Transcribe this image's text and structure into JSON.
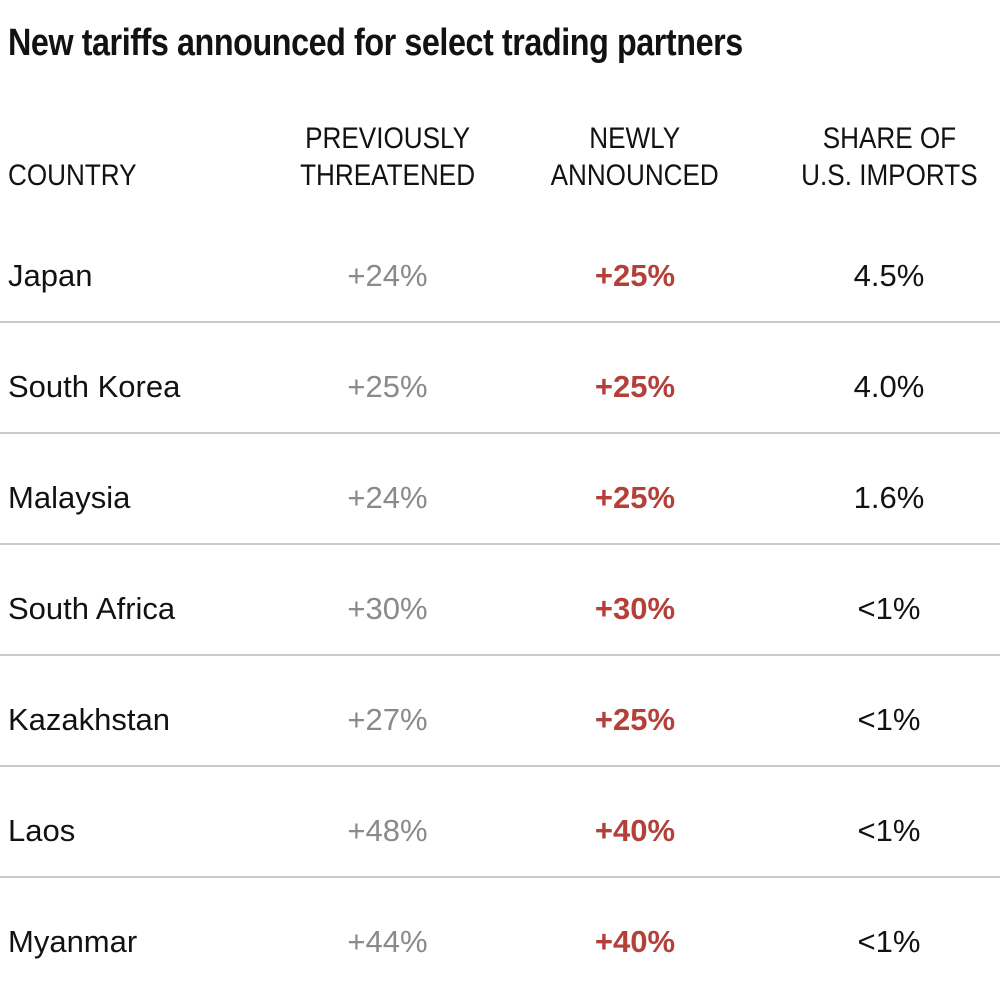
{
  "chart_data": {
    "type": "table",
    "title": "New tariffs announced for select trading partners",
    "column_headers": [
      {
        "id": "country",
        "lines": [
          "COUNTRY",
          ""
        ]
      },
      {
        "id": "previously_threatened",
        "lines": [
          "PREVIOUSLY",
          "THREATENED"
        ]
      },
      {
        "id": "newly_announced",
        "lines": [
          "NEWLY",
          "ANNOUNCED"
        ]
      },
      {
        "id": "share_of_us_imports",
        "lines": [
          "SHARE OF",
          "U.S. IMPORTS"
        ]
      }
    ],
    "rows": [
      {
        "country": "Japan",
        "previously_threatened": "+24%",
        "newly_announced": "+25%",
        "share_of_us_imports": "4.5%"
      },
      {
        "country": "South Korea",
        "previously_threatened": "+25%",
        "newly_announced": "+25%",
        "share_of_us_imports": "4.0%"
      },
      {
        "country": "Malaysia",
        "previously_threatened": "+24%",
        "newly_announced": "+25%",
        "share_of_us_imports": "1.6%"
      },
      {
        "country": "South Africa",
        "previously_threatened": "+30%",
        "newly_announced": "+30%",
        "share_of_us_imports": "<1%"
      },
      {
        "country": "Kazakhstan",
        "previously_threatened": "+27%",
        "newly_announced": "+25%",
        "share_of_us_imports": "<1%"
      },
      {
        "country": "Laos",
        "previously_threatened": "+48%",
        "newly_announced": "+40%",
        "share_of_us_imports": "<1%"
      },
      {
        "country": "Myanmar",
        "previously_threatened": "+44%",
        "newly_announced": "+40%",
        "share_of_us_imports": "<1%"
      }
    ],
    "layout": {
      "grid": "off",
      "row_dividers": "on",
      "value_alignment": "center"
    }
  },
  "colors": {
    "text": "#121212",
    "muted_gray": "#8a8a8a",
    "accent_red": "#b4403a",
    "divider": "#c9c9c9",
    "background": "#ffffff"
  }
}
